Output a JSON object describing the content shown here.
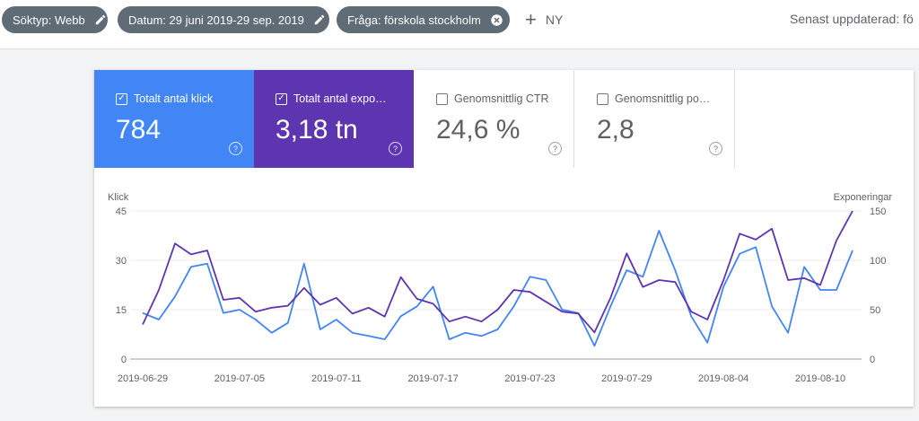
{
  "filters": [
    {
      "label": "Söktyp: Webb",
      "icon": "edit-icon"
    },
    {
      "label": "Datum: 29 juni 2019-29 sep. 2019",
      "icon": "edit-icon"
    },
    {
      "label": "Fråga: förskola stockholm",
      "icon": "close-icon"
    }
  ],
  "new_button_label": "NY",
  "last_updated": "Senast uppdaterad: fö",
  "metrics": [
    {
      "label": "Totalt antal klick",
      "value": "784",
      "checked": true,
      "color": "#4285f4"
    },
    {
      "label": "Totalt antal expo…",
      "value": "3,18 tn",
      "checked": true,
      "color": "#5e35b1"
    },
    {
      "label": "Genomsnittlig CTR",
      "value": "24,6 %",
      "checked": false
    },
    {
      "label": "Genomsnittlig po…",
      "value": "2,8",
      "checked": false
    }
  ],
  "help_glyph": "?",
  "checkmark_glyph": "✓",
  "chart_data": {
    "type": "line",
    "y_left_label": "Klick",
    "y_right_label": "Exponeringar",
    "y_left_ticks": [
      "0",
      "15",
      "30",
      "45"
    ],
    "y_right_ticks": [
      "0",
      "50",
      "100",
      "150"
    ],
    "y_left_range": [
      0,
      45
    ],
    "y_right_range": [
      0,
      150
    ],
    "x_tick_labels": [
      "2019-06-29",
      "2019-07-05",
      "2019-07-11",
      "2019-07-17",
      "2019-07-23",
      "2019-07-29",
      "2019-08-04",
      "2019-08-10"
    ],
    "x_tick_index": [
      0,
      6,
      12,
      18,
      24,
      30,
      36,
      42
    ],
    "grid": true,
    "series": [
      {
        "axis": "left",
        "color": "#4285f4",
        "values": [
          14,
          12,
          19,
          28,
          29,
          14,
          15,
          12,
          8,
          11,
          29,
          9,
          12,
          8,
          7,
          6,
          13,
          16,
          22,
          6,
          8,
          7,
          9,
          16,
          25,
          24,
          15,
          14,
          4,
          16,
          27,
          25,
          39,
          27,
          13,
          5,
          22,
          32,
          34,
          16,
          8,
          28,
          21,
          21,
          33
        ]
      },
      {
        "axis": "right",
        "color": "#5e35b1",
        "values": [
          35,
          70,
          117,
          106,
          110,
          60,
          62,
          48,
          52,
          54,
          72,
          55,
          62,
          46,
          52,
          43,
          83,
          61,
          56,
          38,
          43,
          38,
          50,
          70,
          68,
          58,
          48,
          46,
          27,
          62,
          107,
          73,
          80,
          78,
          48,
          40,
          80,
          127,
          121,
          132,
          80,
          82,
          75,
          120,
          150
        ]
      }
    ]
  }
}
